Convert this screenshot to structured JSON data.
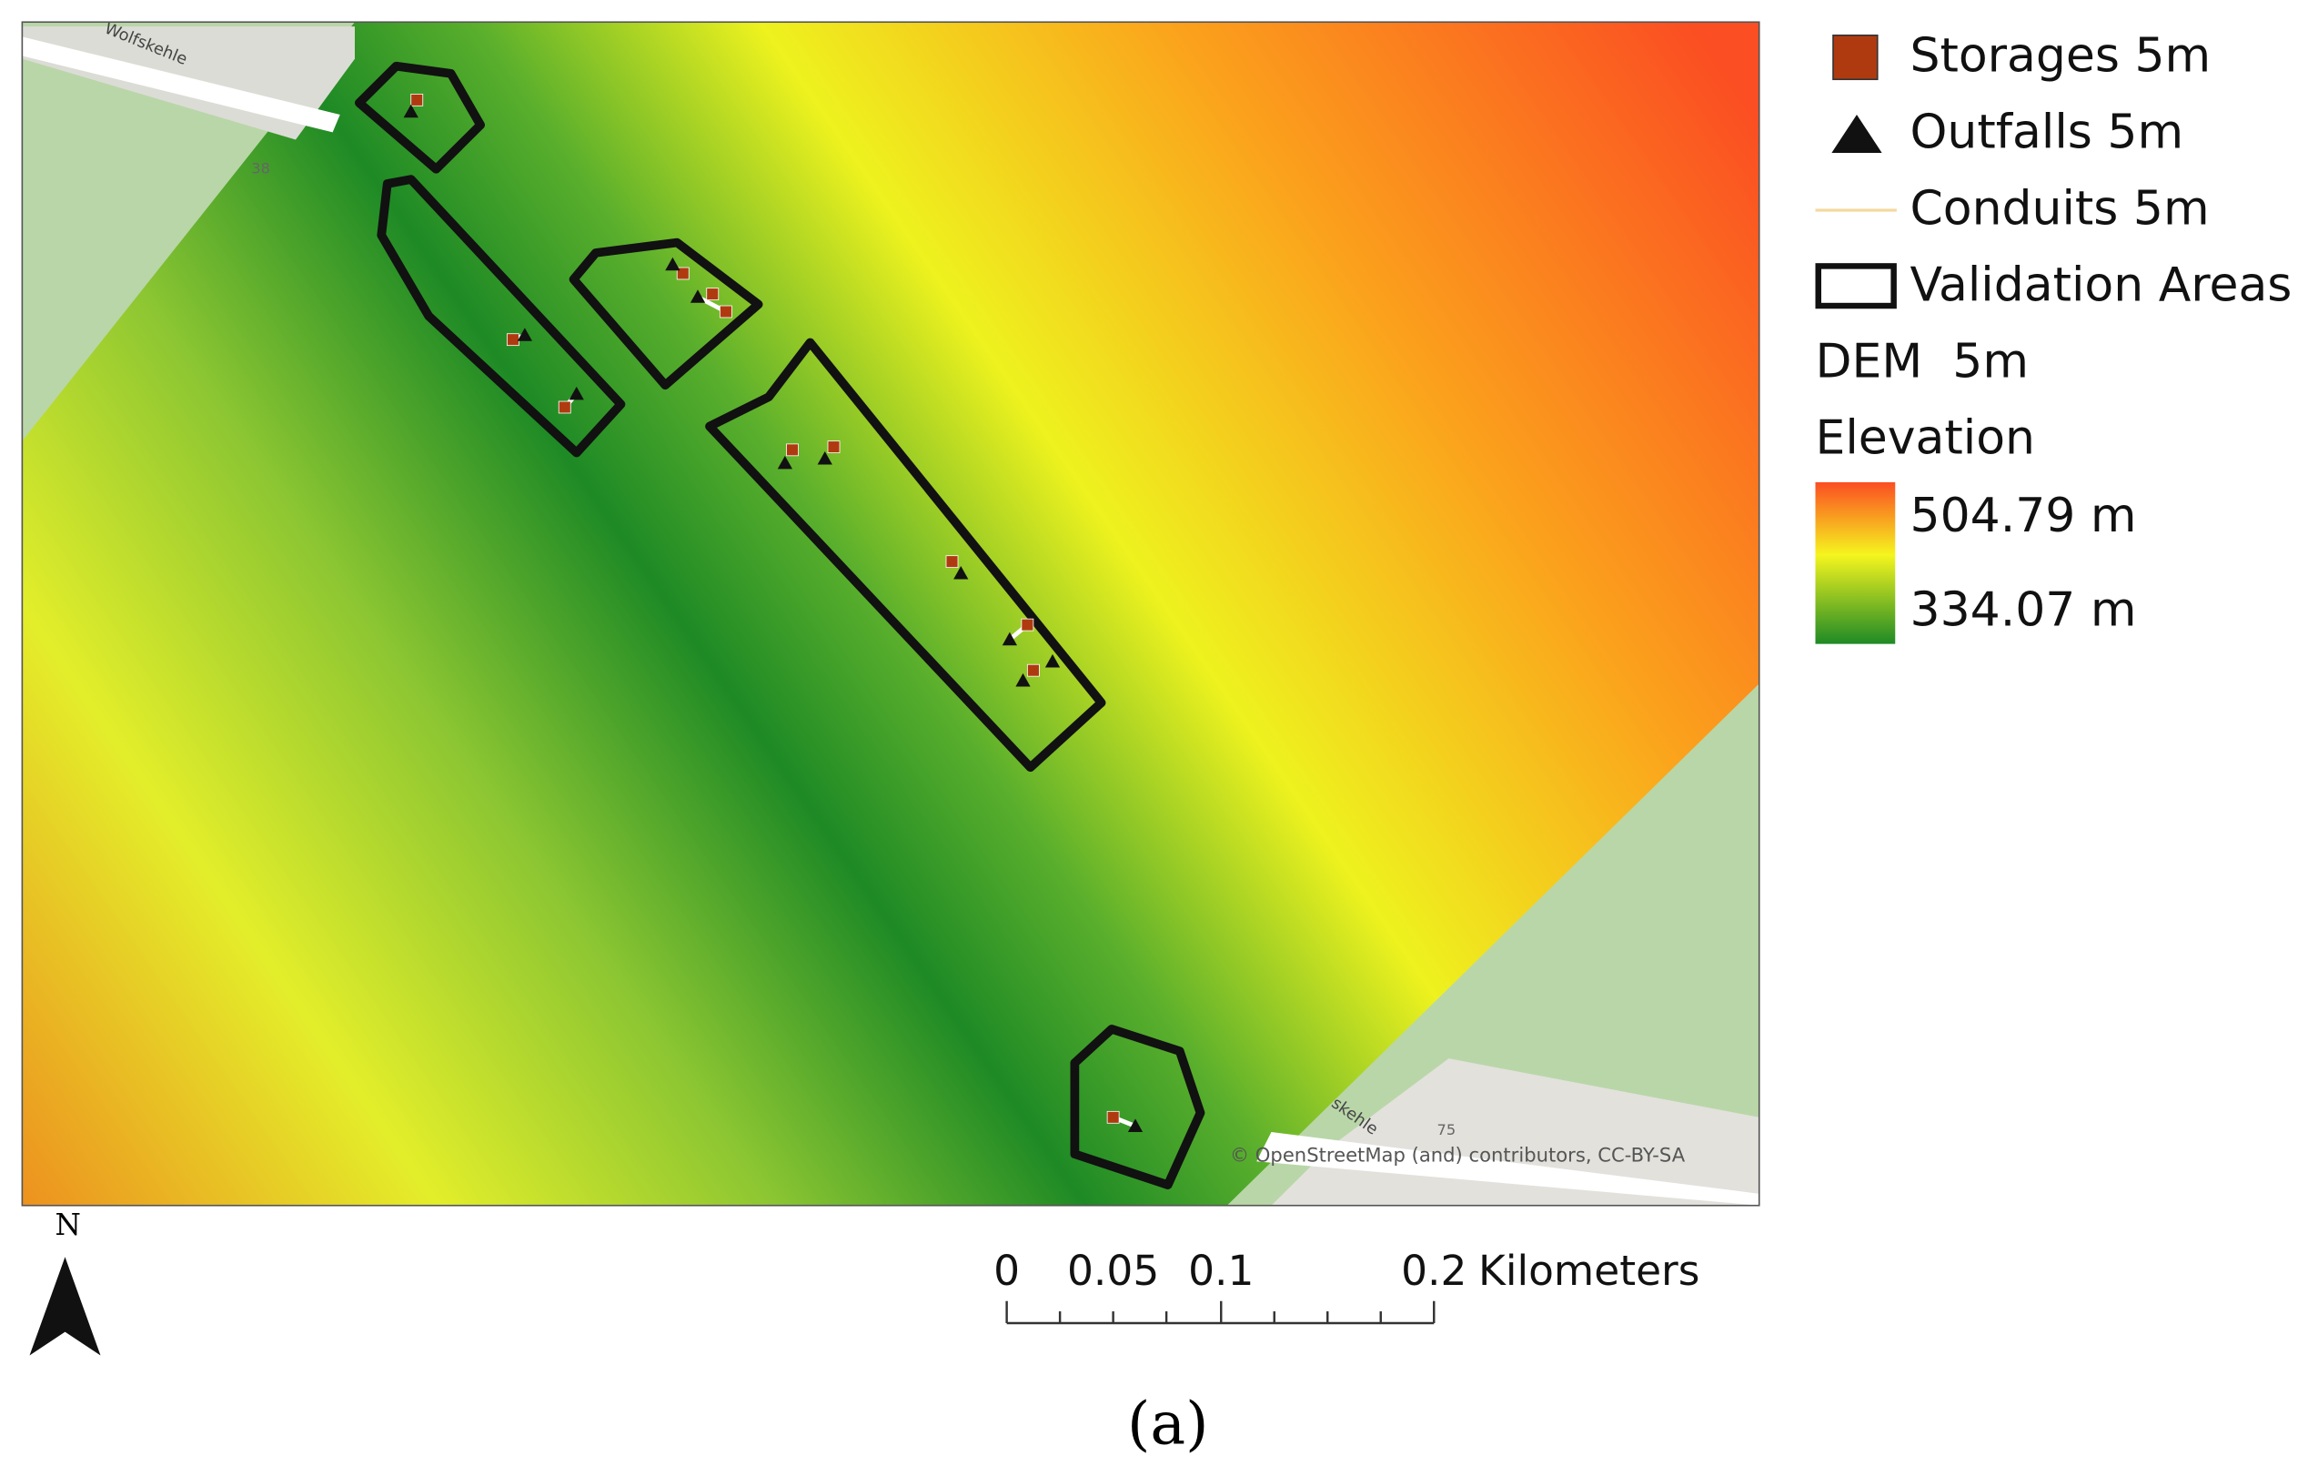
{
  "map": {
    "labels": {
      "street_top": "Wolfskehle",
      "street_bottom": "skehle",
      "house_top": "38",
      "house_bottom": "75",
      "attribution": "© OpenStreetMap (and) contributors, CC-BY-SA"
    },
    "legend": {
      "items": [
        "Storages 5m",
        "Outfalls 5m",
        "Conduits 5m",
        "Validation Areas"
      ],
      "dem_title": "DEM  5m",
      "elevation_title": "Elevation",
      "high": "504.79 m",
      "low": "334.07 m"
    },
    "scale_bar": {
      "labels": [
        "0",
        "0.05",
        "0.1",
        "0.2"
      ],
      "unit": "Kilometers"
    },
    "north": "N",
    "caption": "(a)"
  }
}
